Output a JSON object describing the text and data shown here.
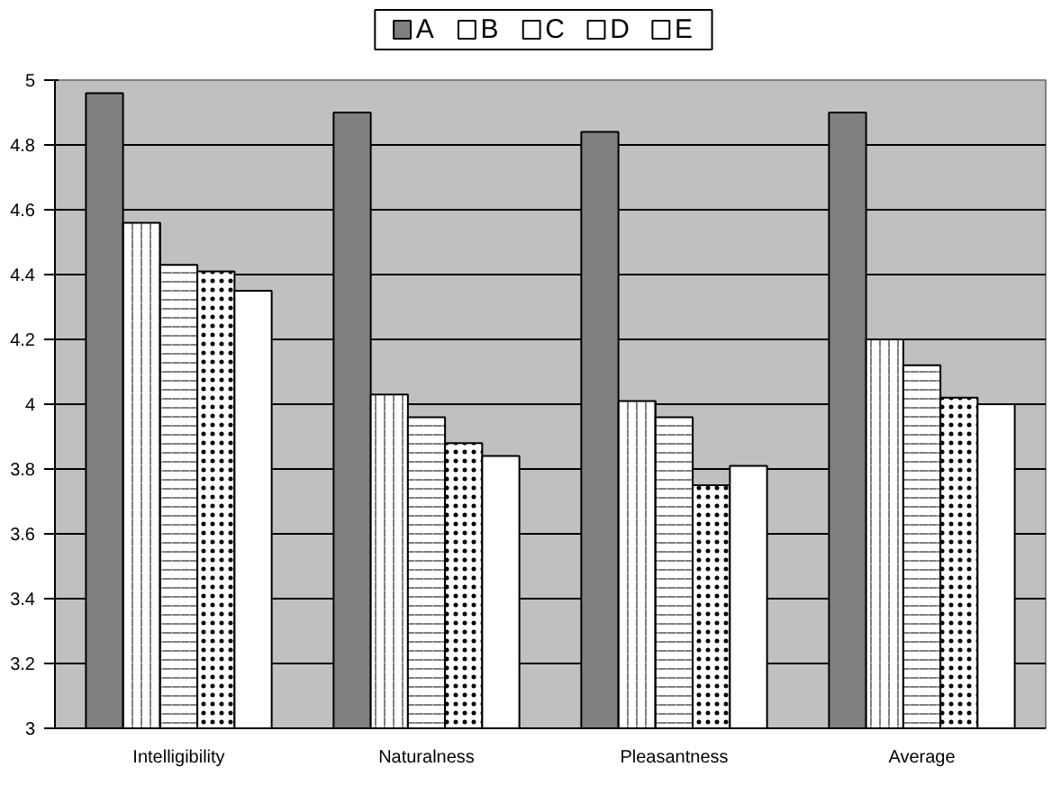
{
  "chart_data": {
    "type": "bar",
    "categories": [
      "Intelligibility",
      "Naturalness",
      "Pleasantness",
      "Average"
    ],
    "series": [
      {
        "name": "A",
        "color": "#808080",
        "values": [
          4.96,
          4.9,
          4.84,
          4.9
        ]
      },
      {
        "name": "B",
        "color": "#ffffff",
        "values": [
          4.56,
          4.03,
          4.01,
          4.2
        ]
      },
      {
        "name": "C",
        "color": "#ffffff",
        "values": [
          4.43,
          3.96,
          3.96,
          4.12
        ]
      },
      {
        "name": "D",
        "color": "#ffffff",
        "values": [
          4.41,
          3.88,
          3.75,
          4.02
        ]
      },
      {
        "name": "E",
        "color": "#ffffff",
        "values": [
          4.35,
          3.84,
          3.81,
          4.0
        ]
      }
    ],
    "ylim": [
      3,
      5
    ],
    "yticks": [
      3,
      3.2,
      3.4,
      3.6,
      3.8,
      4,
      4.2,
      4.4,
      4.6,
      4.8,
      5
    ],
    "grid": "y",
    "legend": "top"
  }
}
